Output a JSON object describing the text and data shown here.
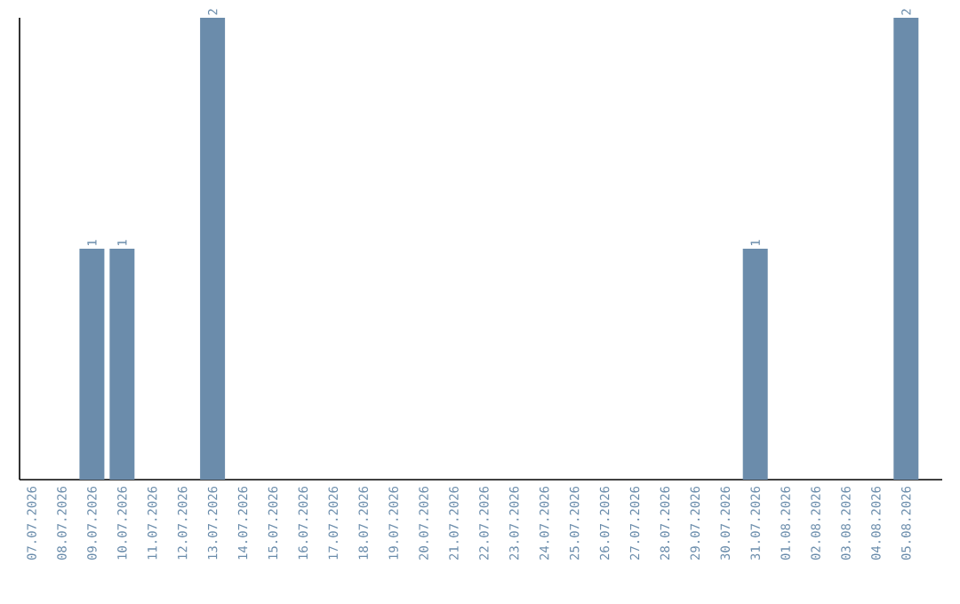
{
  "chart_data": {
    "type": "bar",
    "color": "#6b8cab",
    "categories": [
      "07.07.2026",
      "08.07.2026",
      "09.07.2026",
      "10.07.2026",
      "11.07.2026",
      "12.07.2026",
      "13.07.2026",
      "14.07.2026",
      "15.07.2026",
      "16.07.2026",
      "17.07.2026",
      "18.07.2026",
      "19.07.2026",
      "20.07.2026",
      "21.07.2026",
      "22.07.2026",
      "23.07.2026",
      "24.07.2026",
      "25.07.2026",
      "26.07.2026",
      "27.07.2026",
      "28.07.2026",
      "29.07.2026",
      "30.07.2026",
      "31.07.2026",
      "01.08.2026",
      "02.08.2026",
      "03.08.2026",
      "04.08.2026",
      "05.08.2026"
    ],
    "values": [
      0,
      0,
      1,
      1,
      0,
      0,
      2,
      0,
      0,
      0,
      0,
      0,
      0,
      0,
      0,
      0,
      0,
      0,
      0,
      0,
      0,
      0,
      0,
      0,
      1,
      0,
      0,
      0,
      0,
      2
    ],
    "value_labels": [
      null,
      null,
      "1",
      "1",
      null,
      null,
      "2",
      null,
      null,
      null,
      null,
      null,
      null,
      null,
      null,
      null,
      null,
      null,
      null,
      null,
      null,
      null,
      null,
      null,
      "1",
      null,
      null,
      null,
      null,
      "2"
    ],
    "grid": false
  }
}
